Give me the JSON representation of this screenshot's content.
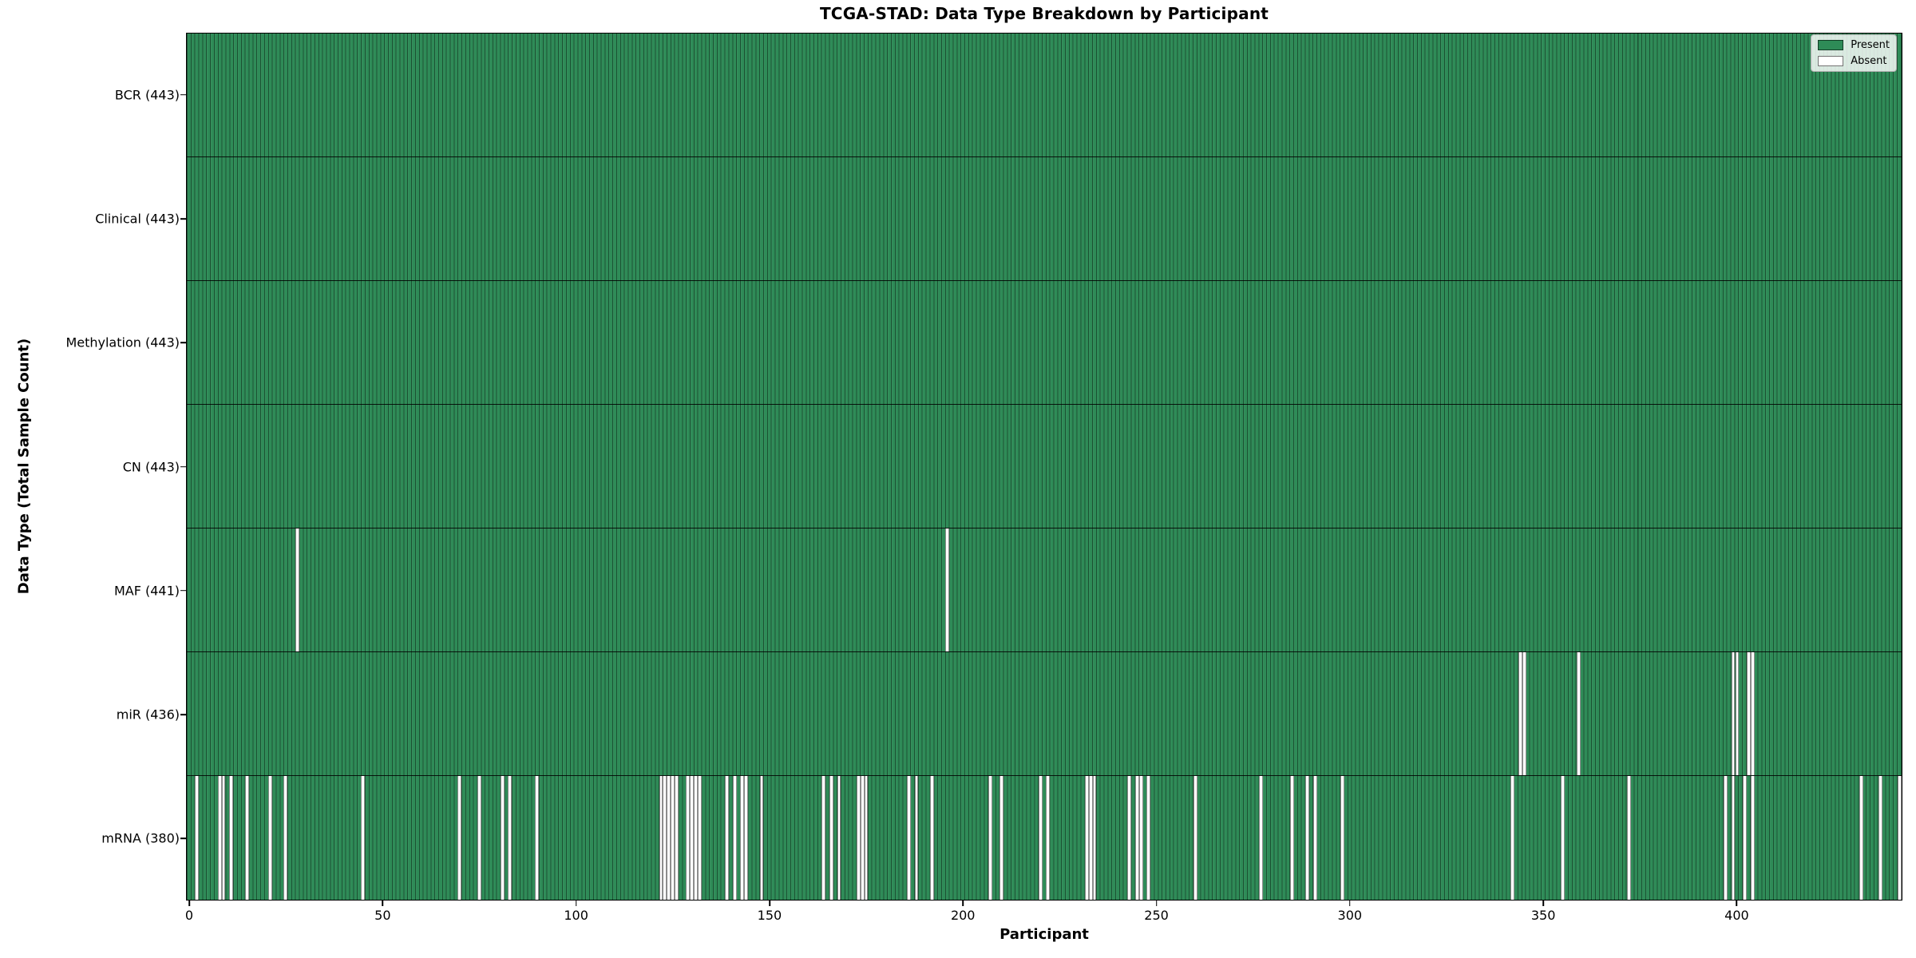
{
  "figure": {
    "title": "TCGA-STAD: Data Type Breakdown by Participant"
  },
  "colors": {
    "present": "#2e8b57",
    "absent": "#ffffff",
    "bar_edge": "rgba(0,0,0,0.45)",
    "axis": "#000000",
    "background": "#ffffff"
  },
  "chart_data": {
    "type": "heatmap",
    "title": "TCGA-STAD: Data Type Breakdown by Participant",
    "xlabel": "Participant",
    "ylabel": "Data Type (Total Sample Count)",
    "x_ticks": [
      0,
      50,
      100,
      150,
      200,
      250,
      300,
      350,
      400
    ],
    "xlim": [
      0,
      443
    ],
    "n_participants": 443,
    "grid": false,
    "legend_position": "upper-right",
    "legend": [
      {
        "label": "Present",
        "color": "#2e8b57"
      },
      {
        "label": "Absent",
        "color": "#ffffff"
      }
    ],
    "rows": [
      {
        "key": "bcr",
        "data_type": "BCR",
        "label": "BCR (443)",
        "present_count": 443,
        "absent_participants": []
      },
      {
        "key": "clinical",
        "data_type": "Clinical",
        "label": "Clinical (443)",
        "present_count": 443,
        "absent_participants": []
      },
      {
        "key": "methylation",
        "data_type": "Methylation",
        "label": "Methylation (443)",
        "present_count": 443,
        "absent_participants": []
      },
      {
        "key": "cn",
        "data_type": "CN",
        "label": "CN (443)",
        "present_count": 443,
        "absent_participants": []
      },
      {
        "key": "maf",
        "data_type": "MAF",
        "label": "MAF (441)",
        "present_count": 441,
        "absent_participants": [
          28,
          196
        ]
      },
      {
        "key": "mir",
        "data_type": "miR",
        "label": "miR (436)",
        "present_count": 436,
        "absent_participants": [
          344,
          345,
          359,
          399,
          400,
          403,
          404
        ]
      },
      {
        "key": "mrna",
        "data_type": "mRNA",
        "label": "mRNA (380)",
        "present_count": 380,
        "absent_participants": [
          2,
          8,
          9,
          11,
          15,
          21,
          25,
          45,
          70,
          75,
          81,
          83,
          90,
          122,
          123,
          124,
          125,
          126,
          129,
          130,
          131,
          132,
          139,
          141,
          143,
          144,
          148,
          164,
          166,
          168,
          173,
          174,
          175,
          186,
          188,
          192,
          207,
          210,
          220,
          222,
          232,
          233,
          234,
          243,
          245,
          246,
          248,
          260,
          277,
          285,
          289,
          291,
          298,
          342,
          355,
          372,
          397,
          399,
          402,
          404,
          432,
          437,
          442
        ]
      }
    ]
  }
}
